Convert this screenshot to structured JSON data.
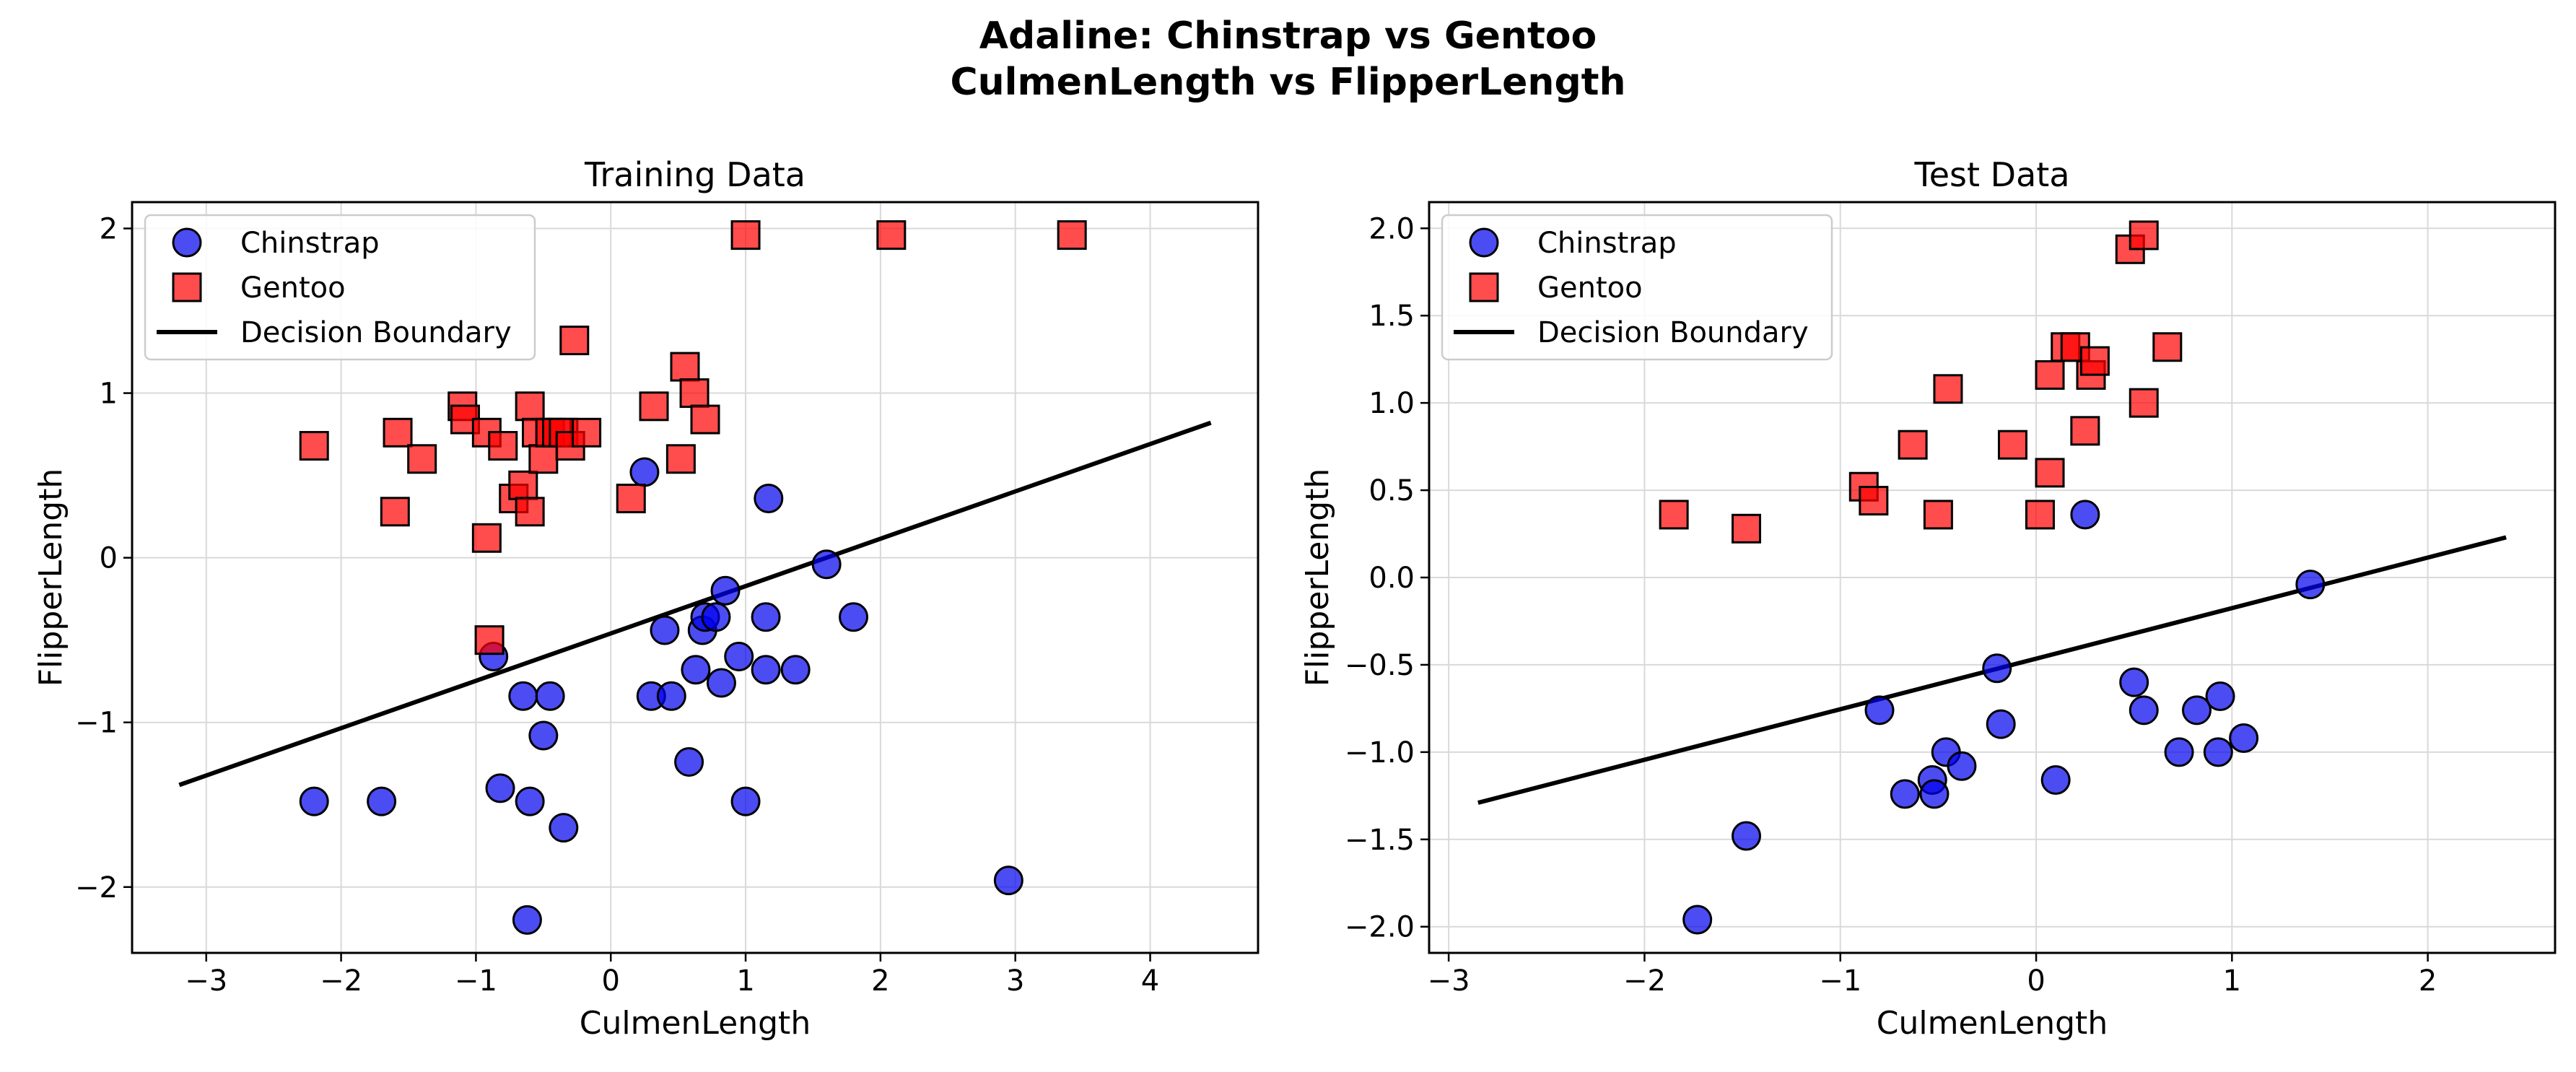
{
  "figure": {
    "title_line1": "Adaline: Chinstrap vs Gentoo",
    "title_line2": "CulmenLength vs FlipperLength"
  },
  "colors": {
    "chinstrap": "#0000ee",
    "gentoo": "#ff0000",
    "boundary": "#000000",
    "marker_edge": "#000000",
    "grid": "#d9d9d9"
  },
  "chart_data": [
    {
      "type": "scatter",
      "title": "Training Data",
      "xlabel": "CulmenLength",
      "ylabel": "FlipperLength",
      "xlim": [
        -3.55,
        4.8
      ],
      "ylim": [
        -2.4,
        2.16
      ],
      "xticks": [
        -3,
        -2,
        -1,
        0,
        1,
        2,
        3,
        4
      ],
      "xtick_labels": [
        "−3",
        "−2",
        "−1",
        "0",
        "1",
        "2",
        "3",
        "4"
      ],
      "yticks": [
        -2,
        -1,
        0,
        1,
        2
      ],
      "ytick_labels": [
        "−2",
        "−1",
        "0",
        "1",
        "2"
      ],
      "grid": true,
      "legend_position": "upper-left",
      "series": [
        {
          "name": "Chinstrap",
          "marker": "circle",
          "points": [
            [
              -2.2,
              -1.48
            ],
            [
              -1.7,
              -1.48
            ],
            [
              -0.87,
              -0.6
            ],
            [
              -0.82,
              -1.4
            ],
            [
              -0.65,
              -0.84
            ],
            [
              -0.6,
              -1.48
            ],
            [
              -0.62,
              -2.2
            ],
            [
              -0.5,
              -1.08
            ],
            [
              -0.45,
              -0.84
            ],
            [
              -0.35,
              -1.64
            ],
            [
              0.25,
              0.52
            ],
            [
              0.3,
              -0.84
            ],
            [
              0.4,
              -0.44
            ],
            [
              0.45,
              -0.84
            ],
            [
              0.58,
              -1.24
            ],
            [
              0.63,
              -0.68
            ],
            [
              0.68,
              -0.44
            ],
            [
              0.7,
              -0.36
            ],
            [
              0.78,
              -0.36
            ],
            [
              0.82,
              -0.76
            ],
            [
              0.85,
              -0.2
            ],
            [
              0.95,
              -0.6
            ],
            [
              1.0,
              -1.48
            ],
            [
              1.15,
              -0.68
            ],
            [
              1.15,
              -0.36
            ],
            [
              1.17,
              0.36
            ],
            [
              1.37,
              -0.68
            ],
            [
              1.6,
              -0.04
            ],
            [
              1.8,
              -0.36
            ],
            [
              2.95,
              -1.96
            ]
          ]
        },
        {
          "name": "Gentoo",
          "marker": "square",
          "points": [
            [
              -2.2,
              0.68
            ],
            [
              -1.6,
              0.28
            ],
            [
              -1.58,
              0.76
            ],
            [
              -1.4,
              0.6
            ],
            [
              -1.1,
              0.92
            ],
            [
              -1.08,
              0.84
            ],
            [
              -0.92,
              0.76
            ],
            [
              -0.92,
              0.12
            ],
            [
              -0.9,
              -0.5
            ],
            [
              -0.8,
              0.68
            ],
            [
              -0.72,
              0.36
            ],
            [
              -0.65,
              0.44
            ],
            [
              -0.6,
              0.28
            ],
            [
              -0.6,
              0.92
            ],
            [
              -0.55,
              0.76
            ],
            [
              -0.5,
              0.6
            ],
            [
              -0.45,
              0.76
            ],
            [
              -0.4,
              0.76
            ],
            [
              -0.35,
              0.76
            ],
            [
              -0.3,
              0.68
            ],
            [
              -0.27,
              1.32
            ],
            [
              -0.18,
              0.76
            ],
            [
              0.15,
              0.36
            ],
            [
              0.32,
              0.92
            ],
            [
              0.52,
              0.6
            ],
            [
              0.55,
              1.16
            ],
            [
              0.62,
              1.0
            ],
            [
              0.7,
              0.84
            ],
            [
              1.0,
              1.96
            ],
            [
              2.08,
              1.96
            ],
            [
              3.42,
              1.96
            ]
          ]
        }
      ],
      "boundary": {
        "name": "Decision Boundary",
        "x": [
          -3.2,
          4.45
        ],
        "y": [
          -1.38,
          0.82
        ]
      }
    },
    {
      "type": "scatter",
      "title": "Test Data",
      "xlabel": "CulmenLength",
      "ylabel": "FlipperLength",
      "xlim": [
        -3.1,
        2.65
      ],
      "ylim": [
        -2.15,
        2.15
      ],
      "xticks": [
        -3,
        -2,
        -1,
        0,
        1,
        2
      ],
      "xtick_labels": [
        "−3",
        "−2",
        "−1",
        "0",
        "1",
        "2"
      ],
      "yticks": [
        -2.0,
        -1.5,
        -1.0,
        -0.5,
        0.0,
        0.5,
        1.0,
        1.5,
        2.0
      ],
      "ytick_labels": [
        "−2.0",
        "−1.5",
        "−1.0",
        "−0.5",
        "0.0",
        "0.5",
        "1.0",
        "1.5",
        "2.0"
      ],
      "grid": true,
      "legend_position": "upper-left",
      "series": [
        {
          "name": "Chinstrap",
          "marker": "circle",
          "points": [
            [
              -1.73,
              -1.96
            ],
            [
              -1.48,
              -1.48
            ],
            [
              -0.8,
              -0.76
            ],
            [
              -0.67,
              -1.24
            ],
            [
              -0.53,
              -1.16
            ],
            [
              -0.52,
              -1.24
            ],
            [
              -0.46,
              -1.0
            ],
            [
              -0.38,
              -1.08
            ],
            [
              -0.2,
              -0.52
            ],
            [
              -0.18,
              -0.84
            ],
            [
              0.1,
              -1.16
            ],
            [
              0.25,
              0.36
            ],
            [
              0.5,
              -0.6
            ],
            [
              0.55,
              -0.76
            ],
            [
              0.73,
              -1.0
            ],
            [
              0.82,
              -0.76
            ],
            [
              0.93,
              -1.0
            ],
            [
              0.94,
              -0.68
            ],
            [
              1.06,
              -0.92
            ],
            [
              1.4,
              -0.04
            ]
          ]
        },
        {
          "name": "Gentoo",
          "marker": "square",
          "points": [
            [
              -1.85,
              0.36
            ],
            [
              -1.48,
              0.28
            ],
            [
              -0.88,
              0.52
            ],
            [
              -0.83,
              0.44
            ],
            [
              -0.63,
              0.76
            ],
            [
              -0.5,
              0.36
            ],
            [
              -0.45,
              1.08
            ],
            [
              -0.12,
              0.76
            ],
            [
              0.02,
              0.36
            ],
            [
              0.07,
              0.6
            ],
            [
              0.07,
              1.16
            ],
            [
              0.15,
              1.32
            ],
            [
              0.2,
              1.32
            ],
            [
              0.25,
              0.84
            ],
            [
              0.28,
              1.16
            ],
            [
              0.3,
              1.24
            ],
            [
              0.48,
              1.88
            ],
            [
              0.55,
              1.96
            ],
            [
              0.55,
              1.0
            ],
            [
              0.67,
              1.32
            ]
          ]
        }
      ],
      "boundary": {
        "name": "Decision Boundary",
        "x": [
          -2.85,
          2.4
        ],
        "y": [
          -1.29,
          0.23
        ]
      }
    }
  ]
}
